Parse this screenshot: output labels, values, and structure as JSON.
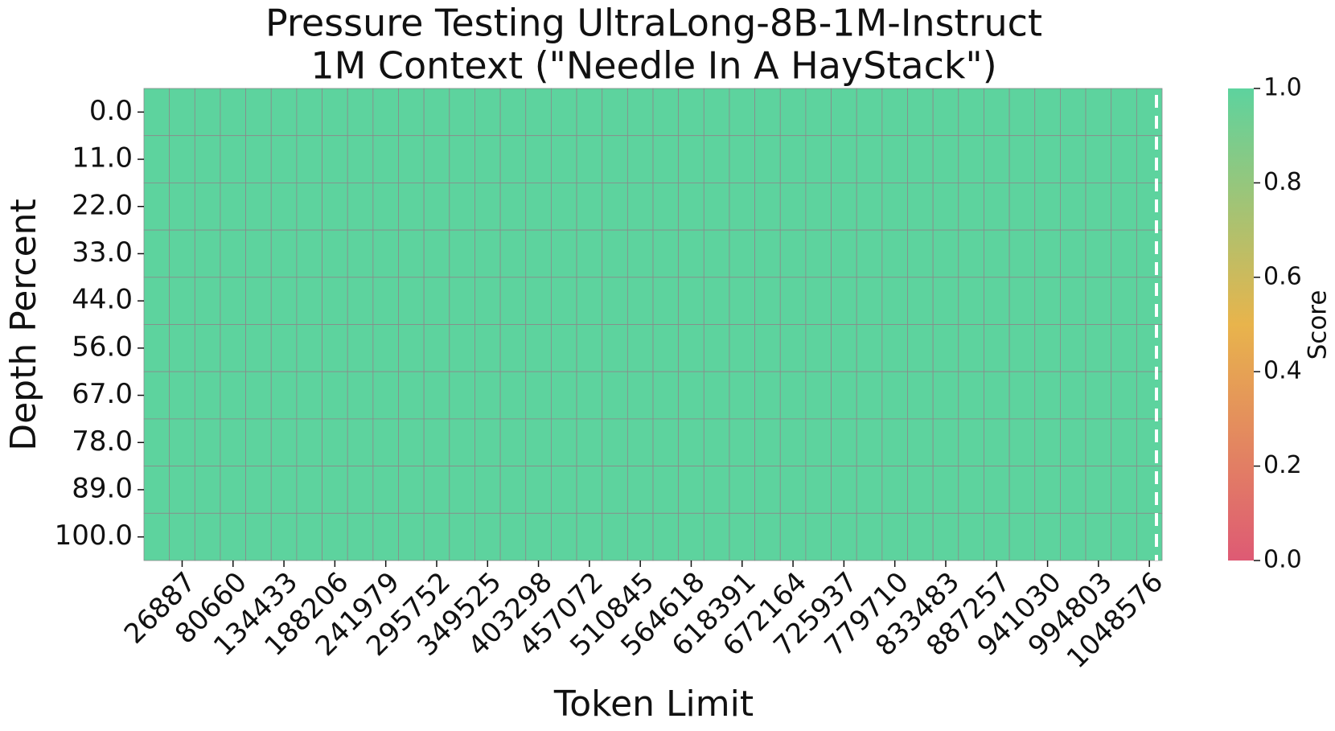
{
  "chart_data": {
    "type": "heatmap",
    "title": "Pressure Testing UltraLong-8B-1M-Instruct",
    "subtitle": "1M Context (\"Needle In A HayStack\")",
    "x_label": "Token Limit",
    "y_label": "Depth Percent",
    "colorbar_label": "Score",
    "columns": [
      null,
      "26887",
      null,
      "80660",
      null,
      "134433",
      null,
      "188206",
      null,
      "241979",
      null,
      "295752",
      null,
      "349525",
      null,
      "403298",
      null,
      "457072",
      null,
      "510845",
      null,
      "564618",
      null,
      "618391",
      null,
      "672164",
      null,
      "725937",
      null,
      "779710",
      null,
      "833483",
      null,
      "887257",
      null,
      "941030",
      null,
      "994803",
      null,
      "1048576"
    ],
    "rows": [
      "0.0",
      "11.0",
      "22.0",
      "33.0",
      "44.0",
      "56.0",
      "67.0",
      "78.0",
      "89.0",
      "100.0"
    ],
    "values": [
      [
        1,
        1,
        1,
        1,
        1,
        1,
        1,
        1,
        1,
        1,
        1,
        1,
        1,
        1,
        1,
        1,
        1,
        1,
        1,
        1,
        1,
        1,
        1,
        1,
        1,
        1,
        1,
        1,
        1,
        1,
        1,
        1,
        1,
        1,
        1,
        1,
        1,
        1,
        1,
        1
      ],
      [
        1,
        1,
        1,
        1,
        1,
        1,
        1,
        1,
        1,
        1,
        1,
        1,
        1,
        1,
        1,
        1,
        1,
        1,
        1,
        1,
        1,
        1,
        1,
        1,
        1,
        1,
        1,
        1,
        1,
        1,
        1,
        1,
        1,
        1,
        1,
        1,
        1,
        1,
        1,
        1
      ],
      [
        1,
        1,
        1,
        1,
        1,
        1,
        1,
        1,
        1,
        1,
        1,
        1,
        1,
        1,
        1,
        1,
        1,
        1,
        1,
        1,
        1,
        1,
        1,
        1,
        1,
        1,
        1,
        1,
        1,
        1,
        1,
        1,
        1,
        1,
        1,
        1,
        1,
        1,
        1,
        1
      ],
      [
        1,
        1,
        1,
        1,
        1,
        1,
        1,
        1,
        1,
        1,
        1,
        1,
        1,
        1,
        1,
        1,
        1,
        1,
        1,
        1,
        1,
        1,
        1,
        1,
        1,
        1,
        1,
        1,
        1,
        1,
        1,
        1,
        1,
        1,
        1,
        1,
        1,
        1,
        1,
        1
      ],
      [
        1,
        1,
        1,
        1,
        1,
        1,
        1,
        1,
        1,
        1,
        1,
        1,
        1,
        1,
        1,
        1,
        1,
        1,
        1,
        1,
        1,
        1,
        1,
        1,
        1,
        1,
        1,
        1,
        1,
        1,
        1,
        1,
        1,
        1,
        1,
        1,
        1,
        1,
        1,
        1
      ],
      [
        1,
        1,
        1,
        1,
        1,
        1,
        1,
        1,
        1,
        1,
        1,
        1,
        1,
        1,
        1,
        1,
        1,
        1,
        1,
        1,
        1,
        1,
        1,
        1,
        1,
        1,
        1,
        1,
        1,
        1,
        1,
        1,
        1,
        1,
        1,
        1,
        1,
        1,
        1,
        1
      ],
      [
        1,
        1,
        1,
        1,
        1,
        1,
        1,
        1,
        1,
        1,
        1,
        1,
        1,
        1,
        1,
        1,
        1,
        1,
        1,
        1,
        1,
        1,
        1,
        1,
        1,
        1,
        1,
        1,
        1,
        1,
        1,
        1,
        1,
        1,
        1,
        1,
        1,
        1,
        1,
        1
      ],
      [
        1,
        1,
        1,
        1,
        1,
        1,
        1,
        1,
        1,
        1,
        1,
        1,
        1,
        1,
        1,
        1,
        1,
        1,
        1,
        1,
        1,
        1,
        1,
        1,
        1,
        1,
        1,
        1,
        1,
        1,
        1,
        1,
        1,
        1,
        1,
        1,
        1,
        1,
        1,
        1
      ],
      [
        1,
        1,
        1,
        1,
        1,
        1,
        1,
        1,
        1,
        1,
        1,
        1,
        1,
        1,
        1,
        1,
        1,
        1,
        1,
        1,
        1,
        1,
        1,
        1,
        1,
        1,
        1,
        1,
        1,
        1,
        1,
        1,
        1,
        1,
        1,
        1,
        1,
        1,
        1,
        1
      ],
      [
        1,
        1,
        1,
        1,
        1,
        1,
        1,
        1,
        1,
        1,
        1,
        1,
        1,
        1,
        1,
        1,
        1,
        1,
        1,
        1,
        1,
        1,
        1,
        1,
        1,
        1,
        1,
        1,
        1,
        1,
        1,
        1,
        1,
        1,
        1,
        1,
        1,
        1,
        1,
        1
      ]
    ],
    "zlim": [
      0,
      1
    ],
    "zticks": [
      {
        "value": 0,
        "label": "0.0"
      },
      {
        "value": 0.2,
        "label": "0.2"
      },
      {
        "value": 0.4,
        "label": "0.4"
      },
      {
        "value": 0.6,
        "label": "0.6"
      },
      {
        "value": 0.8,
        "label": "0.8"
      },
      {
        "value": 1,
        "label": "1.0"
      }
    ],
    "colormap": [
      "#de5a74",
      "#e8b44c",
      "#5dd39e"
    ]
  }
}
